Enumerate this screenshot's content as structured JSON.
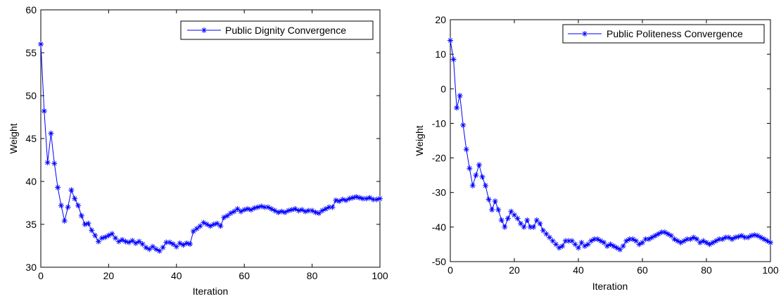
{
  "colors": {
    "series": "#0000ff",
    "axis": "#000000",
    "background": "#ffffff"
  },
  "marker": "asterisk",
  "chart_data": [
    {
      "type": "line",
      "xlabel": "Iteration",
      "ylabel": "Weight",
      "xlim": [
        0,
        100
      ],
      "ylim": [
        30,
        60
      ],
      "xticks": [
        0,
        20,
        40,
        60,
        80,
        100
      ],
      "yticks": [
        30,
        35,
        40,
        45,
        50,
        55,
        60
      ],
      "legend": "top-right",
      "grid": false,
      "series": [
        {
          "name": "Public Dignity Convergence",
          "x": [
            0,
            1,
            2,
            3,
            4,
            5,
            6,
            7,
            8,
            9,
            10,
            11,
            12,
            13,
            14,
            15,
            16,
            17,
            18,
            19,
            20,
            21,
            22,
            23,
            24,
            25,
            26,
            27,
            28,
            29,
            30,
            31,
            32,
            33,
            34,
            35,
            36,
            37,
            38,
            39,
            40,
            41,
            42,
            43,
            44,
            45,
            46,
            47,
            48,
            49,
            50,
            51,
            52,
            53,
            54,
            55,
            56,
            57,
            58,
            59,
            60,
            61,
            62,
            63,
            64,
            65,
            66,
            67,
            68,
            69,
            70,
            71,
            72,
            73,
            74,
            75,
            76,
            77,
            78,
            79,
            80,
            81,
            82,
            83,
            84,
            85,
            86,
            87,
            88,
            89,
            90,
            91,
            92,
            93,
            94,
            95,
            96,
            97,
            98,
            99,
            100
          ],
          "values": [
            56,
            48.2,
            42.2,
            45.6,
            42.1,
            39.3,
            37.2,
            35.4,
            37.0,
            39.0,
            38.0,
            37.2,
            36.0,
            35.0,
            35.1,
            34.3,
            33.7,
            33.0,
            33.4,
            33.5,
            33.7,
            33.9,
            33.4,
            33.0,
            33.2,
            33.0,
            32.9,
            33.1,
            32.8,
            33.0,
            32.7,
            32.3,
            32.1,
            32.4,
            32.1,
            31.9,
            32.3,
            32.9,
            32.9,
            32.7,
            32.4,
            32.8,
            32.6,
            32.8,
            32.7,
            34.2,
            34.5,
            34.8,
            35.2,
            35.0,
            34.8,
            35.0,
            35.1,
            34.8,
            35.8,
            36.0,
            36.3,
            36.5,
            36.8,
            36.5,
            36.7,
            36.8,
            36.7,
            36.9,
            37.0,
            37.1,
            37.0,
            37.0,
            36.8,
            36.6,
            36.4,
            36.5,
            36.4,
            36.6,
            36.7,
            36.8,
            36.6,
            36.7,
            36.5,
            36.6,
            36.6,
            36.4,
            36.3,
            36.6,
            36.8,
            37.0,
            37.0,
            37.8,
            37.7,
            37.9,
            37.8,
            38.0,
            38.1,
            38.2,
            38.1,
            38.0,
            38.0,
            38.1,
            37.9,
            37.9,
            38.0
          ]
        }
      ]
    },
    {
      "type": "line",
      "xlabel": "Iteration",
      "ylabel": "Weight",
      "xlim": [
        0,
        100
      ],
      "ylim": [
        -50,
        20
      ],
      "xticks": [
        0,
        20,
        40,
        60,
        80,
        100
      ],
      "yticks": [
        -50,
        -40,
        -30,
        -20,
        -10,
        0,
        10,
        20
      ],
      "legend": "top-right",
      "grid": false,
      "series": [
        {
          "name": "Public Politeness Convergence",
          "x": [
            0,
            1,
            2,
            3,
            4,
            5,
            6,
            7,
            8,
            9,
            10,
            11,
            12,
            13,
            14,
            15,
            16,
            17,
            18,
            19,
            20,
            21,
            22,
            23,
            24,
            25,
            26,
            27,
            28,
            29,
            30,
            31,
            32,
            33,
            34,
            35,
            36,
            37,
            38,
            39,
            40,
            41,
            42,
            43,
            44,
            45,
            46,
            47,
            48,
            49,
            50,
            51,
            52,
            53,
            54,
            55,
            56,
            57,
            58,
            59,
            60,
            61,
            62,
            63,
            64,
            65,
            66,
            67,
            68,
            69,
            70,
            71,
            72,
            73,
            74,
            75,
            76,
            77,
            78,
            79,
            80,
            81,
            82,
            83,
            84,
            85,
            86,
            87,
            88,
            89,
            90,
            91,
            92,
            93,
            94,
            95,
            96,
            97,
            98,
            99,
            100
          ],
          "values": [
            14,
            8.5,
            -5.5,
            -2,
            -10.5,
            -17.5,
            -23,
            -28,
            -25,
            -22,
            -25.5,
            -28,
            -32,
            -35,
            -32.5,
            -35,
            -38,
            -40,
            -37.5,
            -35.5,
            -36.5,
            -37.5,
            -39,
            -40,
            -38,
            -40,
            -40,
            -38,
            -39,
            -41,
            -42,
            -43,
            -44,
            -45,
            -46,
            -45.5,
            -44,
            -44,
            -44,
            -45,
            -46,
            -44.5,
            -45.5,
            -45,
            -44,
            -43.5,
            -43.5,
            -44,
            -44.5,
            -45.5,
            -45,
            -45.5,
            -46,
            -46.5,
            -45.5,
            -44,
            -43.5,
            -43.5,
            -44,
            -45,
            -44.5,
            -43.5,
            -43.5,
            -43,
            -42.5,
            -42,
            -41.5,
            -41.5,
            -42,
            -42.5,
            -43.5,
            -44,
            -44.5,
            -44,
            -43.5,
            -43.5,
            -43,
            -43.5,
            -44.5,
            -44,
            -44.5,
            -45,
            -44.5,
            -44,
            -43.5,
            -43.5,
            -43,
            -43,
            -43.5,
            -43,
            -42.8,
            -42.5,
            -43,
            -43,
            -42.5,
            -42.3,
            -42.5,
            -43,
            -43.5,
            -44,
            -44.5
          ]
        }
      ]
    }
  ]
}
